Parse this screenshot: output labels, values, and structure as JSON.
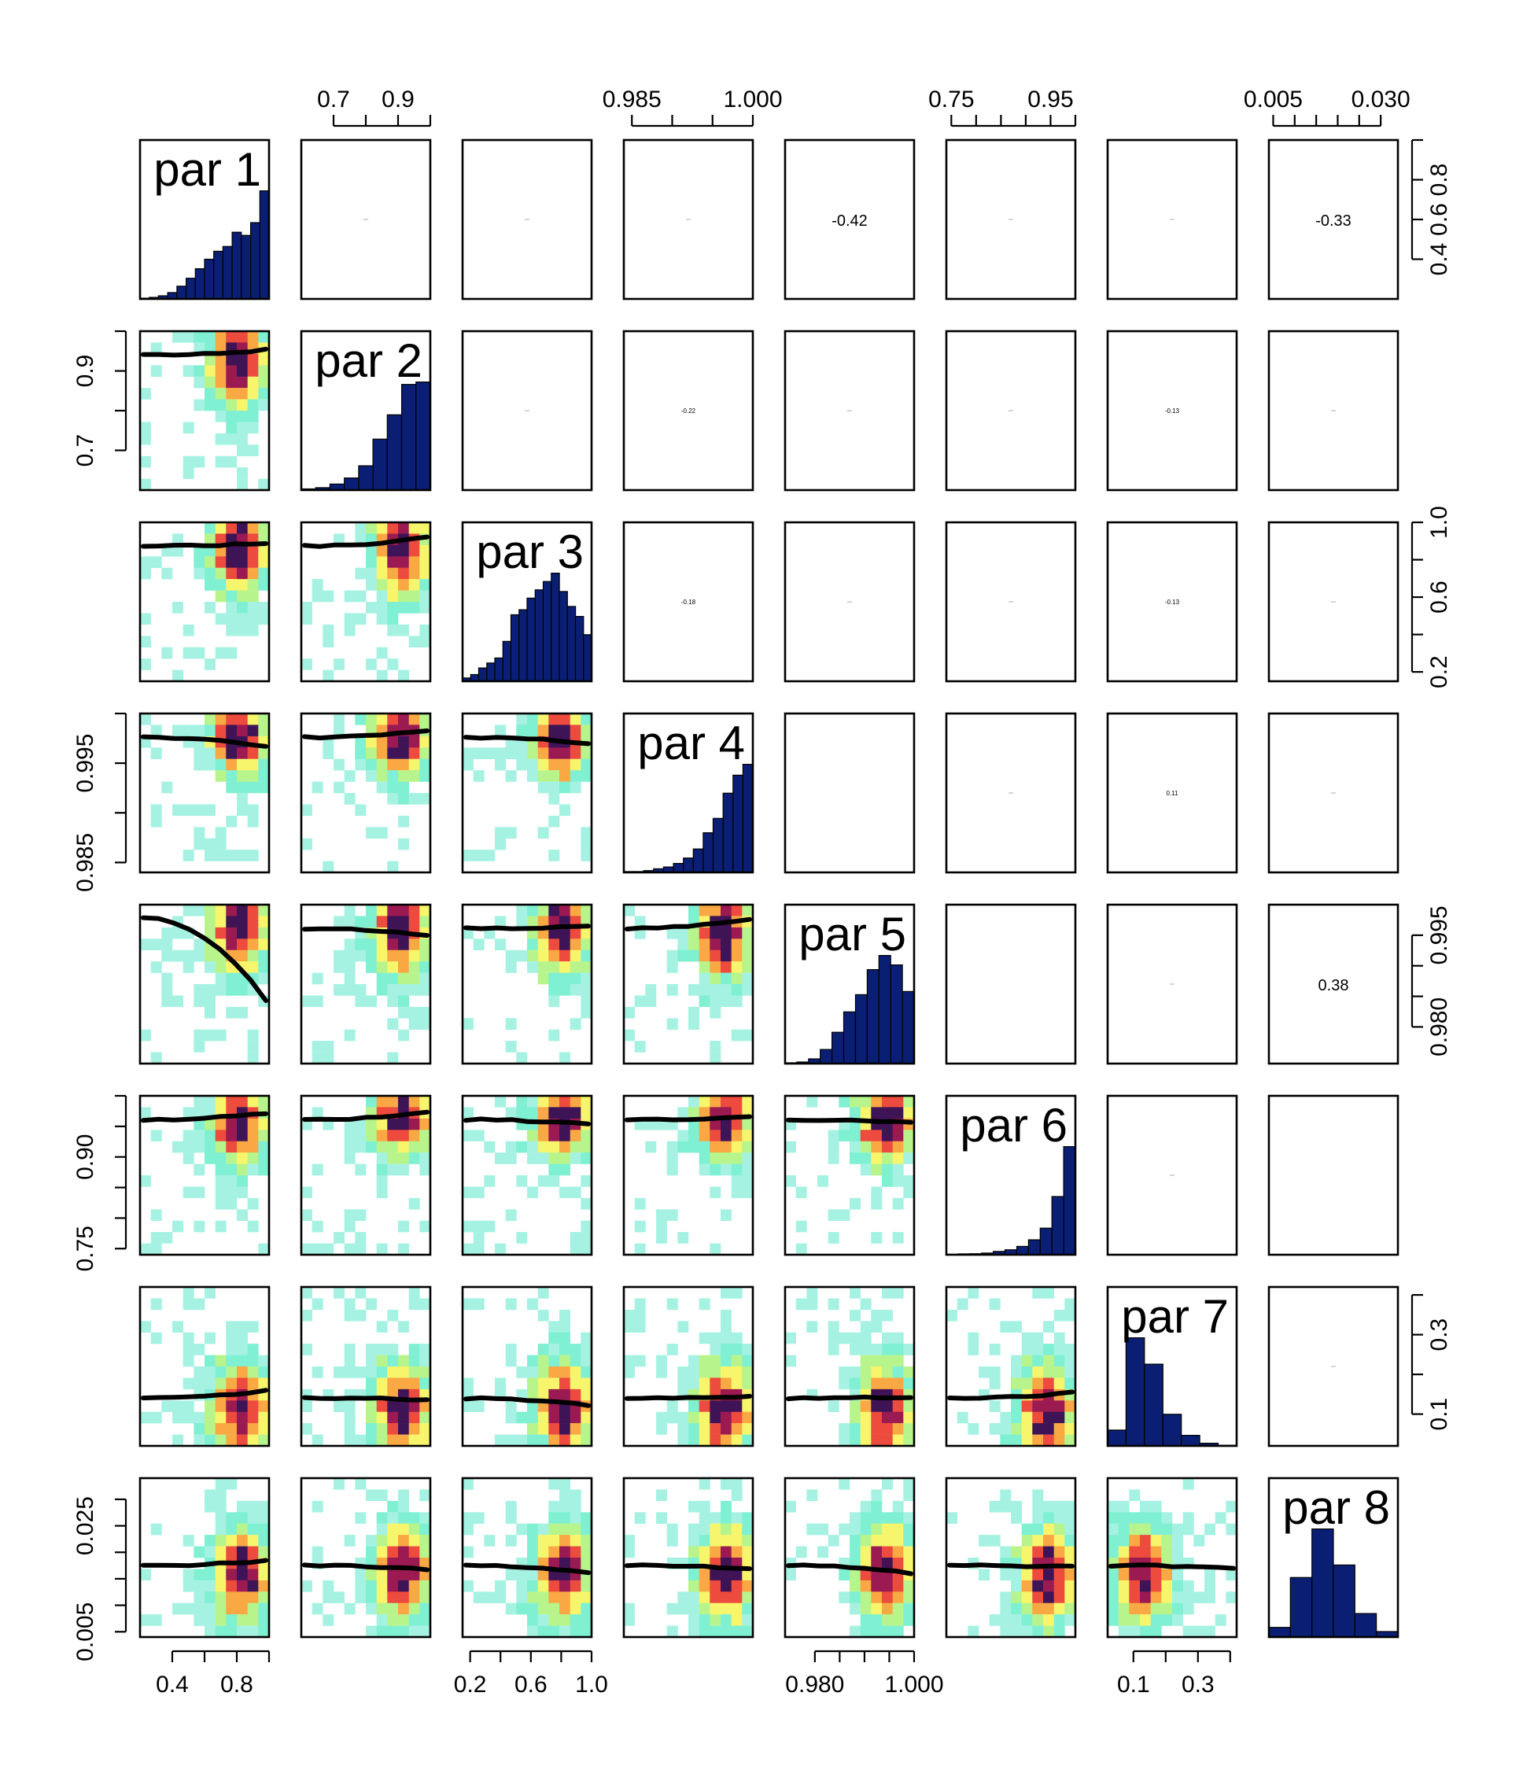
{
  "chart_data": {
    "type": "pairs",
    "variables": [
      "par 1",
      "par 2",
      "par 3",
      "par 4",
      "par 5",
      "par 6",
      "par 7",
      "par 8"
    ],
    "ranges": [
      [
        0.2,
        1.0
      ],
      [
        0.6,
        1.0
      ],
      [
        0.15,
        1.0
      ],
      [
        0.984,
        1.0
      ],
      [
        0.974,
        1.0
      ],
      [
        0.74,
        1.0
      ],
      [
        0.02,
        0.42
      ],
      [
        0.004,
        0.034
      ]
    ],
    "top_axis_ticks": [
      {
        "var": 2,
        "labels": [
          "0.7",
          "0.9"
        ],
        "values": [
          0.7,
          0.9
        ],
        "minor": [
          0.8,
          1.0
        ]
      },
      {
        "var": 4,
        "labels": [
          "0.985",
          "1.000"
        ],
        "values": [
          0.985,
          1.0
        ],
        "minor": [
          0.99,
          0.995
        ]
      },
      {
        "var": 6,
        "labels": [
          "0.75",
          "0.95"
        ],
        "values": [
          0.75,
          0.95
        ],
        "minor": [
          0.8,
          0.85,
          0.9,
          1.0
        ]
      },
      {
        "var": 8,
        "labels": [
          "0.005",
          "0.030"
        ],
        "values": [
          0.005,
          0.03
        ],
        "minor": [
          0.01,
          0.015,
          0.02,
          0.025
        ]
      }
    ],
    "bottom_axis_ticks": [
      {
        "var": 1,
        "labels": [
          "0.4",
          "0.8"
        ],
        "values": [
          0.4,
          0.8
        ],
        "minor": [
          0.6,
          1.0
        ]
      },
      {
        "var": 3,
        "labels": [
          "0.2",
          "0.6",
          "1.0"
        ],
        "values": [
          0.2,
          0.6,
          1.0
        ],
        "minor": [
          0.4,
          0.8
        ]
      },
      {
        "var": 5,
        "labels": [
          "0.980",
          "1.000"
        ],
        "values": [
          0.98,
          1.0
        ],
        "minor": [
          0.985,
          0.99,
          0.995
        ]
      },
      {
        "var": 7,
        "labels": [
          "0.1",
          "0.3"
        ],
        "values": [
          0.1,
          0.3
        ],
        "minor": [
          0.2,
          0.4
        ]
      }
    ],
    "left_axis_ticks": [
      {
        "var": 2,
        "labels": [
          "0.7",
          "0.9"
        ],
        "values": [
          0.7,
          0.9
        ],
        "minor": [
          0.8,
          1.0
        ]
      },
      {
        "var": 4,
        "labels": [
          "0.985",
          "0.995"
        ],
        "values": [
          0.985,
          0.995
        ],
        "minor": [
          0.99,
          1.0
        ]
      },
      {
        "var": 6,
        "labels": [
          "0.75",
          "0.90"
        ],
        "values": [
          0.75,
          0.9
        ],
        "minor": [
          0.8,
          0.85,
          0.95,
          1.0
        ]
      },
      {
        "var": 8,
        "labels": [
          "0.005",
          "0.025"
        ],
        "values": [
          0.005,
          0.025
        ],
        "minor": [
          0.01,
          0.015,
          0.02,
          0.03
        ]
      }
    ],
    "right_axis_ticks": [
      {
        "var": 1,
        "labels": [
          "0.4",
          "0.6",
          "0.8"
        ],
        "values": [
          0.4,
          0.6,
          0.8
        ],
        "minor": [
          1.0
        ]
      },
      {
        "var": 3,
        "labels": [
          "0.2",
          "0.6",
          "1.0"
        ],
        "values": [
          0.2,
          0.6,
          1.0
        ],
        "minor": [
          0.4,
          0.8
        ]
      },
      {
        "var": 5,
        "labels": [
          "0.980",
          "0.995"
        ],
        "values": [
          0.98,
          0.995
        ],
        "minor": [
          0.985,
          0.99
        ]
      },
      {
        "var": 7,
        "labels": [
          "0.1",
          "0.3"
        ],
        "values": [
          0.1,
          0.3
        ],
        "minor": [
          0.2,
          0.4
        ]
      }
    ],
    "histograms": [
      [
        0.5,
        1,
        2,
        4,
        8,
        13,
        19,
        25,
        30,
        33,
        42,
        40,
        48,
        68
      ],
      [
        1,
        2,
        5,
        10,
        20,
        42,
        62,
        87,
        89
      ],
      [
        2,
        4,
        8,
        11,
        14,
        24,
        40,
        43,
        50,
        55,
        60,
        65,
        54,
        45,
        39,
        28
      ],
      [
        0.5,
        0.5,
        1,
        2,
        3,
        5,
        8,
        13,
        22,
        30,
        44,
        54,
        60
      ],
      [
        0.5,
        1,
        3,
        9,
        20,
        33,
        44,
        60,
        69,
        63,
        46
      ],
      [
        0.3,
        0.5,
        0.6,
        1,
        2,
        3,
        5,
        9,
        16,
        35,
        65
      ],
      [
        12,
        82,
        62,
        24,
        8,
        2,
        0.5
      ],
      [
        7,
        43,
        78,
        52,
        17,
        4
      ]
    ],
    "correlations": [
      {
        "row": 1,
        "col": 5,
        "text": "-0.42"
      },
      {
        "row": 1,
        "col": 8,
        "text": "-0.33"
      },
      {
        "row": 2,
        "col": 4,
        "text": "-0.22"
      },
      {
        "row": 2,
        "col": 7,
        "text": "-0.13"
      },
      {
        "row": 3,
        "col": 4,
        "text": "-0.18"
      },
      {
        "row": 3,
        "col": 7,
        "text": "-0.13"
      },
      {
        "row": 4,
        "col": 7,
        "text": "0.11"
      },
      {
        "row": 5,
        "col": 8,
        "text": "0.38"
      }
    ],
    "correlations_tiny": [
      {
        "row": 1,
        "col": 2
      },
      {
        "row": 1,
        "col": 3
      },
      {
        "row": 1,
        "col": 4
      },
      {
        "row": 1,
        "col": 6
      },
      {
        "row": 1,
        "col": 7
      },
      {
        "row": 2,
        "col": 3
      },
      {
        "row": 2,
        "col": 5
      },
      {
        "row": 2,
        "col": 6
      },
      {
        "row": 2,
        "col": 8
      },
      {
        "row": 3,
        "col": 5
      },
      {
        "row": 3,
        "col": 6
      },
      {
        "row": 3,
        "col": 8
      },
      {
        "row": 4,
        "col": 6
      },
      {
        "row": 4,
        "col": 8
      },
      {
        "row": 5,
        "col": 7
      },
      {
        "row": 6,
        "col": 7
      },
      {
        "row": 7,
        "col": 8
      }
    ],
    "lower_panel": "2D histogram heatmap with smoothed trend line",
    "upper_panel": "correlation coefficient text (size proportional to |r|)",
    "diagonal_panel": "histogram",
    "heatmap_colors": [
      "#ffffff",
      "#a6f2e2",
      "#7ff0d2",
      "#b7f58c",
      "#f7f56b",
      "#f9a843",
      "#ec4b3e",
      "#9b1a52",
      "#3f1456"
    ],
    "bar_color": "#0a1f73"
  }
}
